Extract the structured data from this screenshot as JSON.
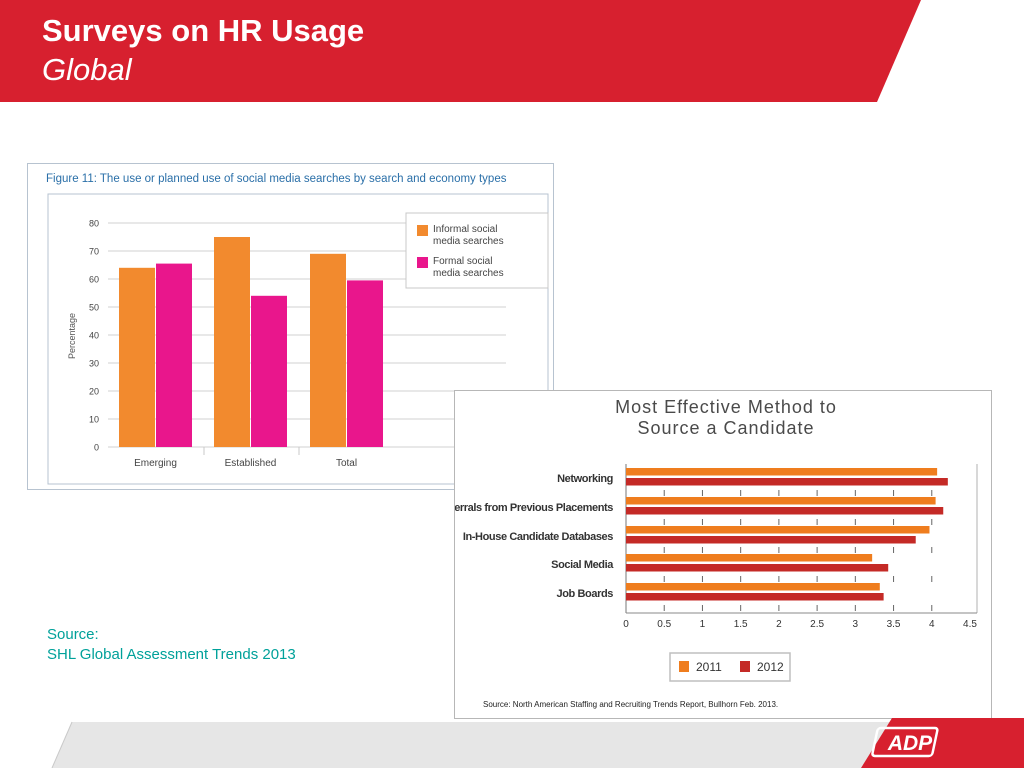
{
  "slide": {
    "title": "Surveys on HR Usage",
    "subtitle": "Global",
    "source_label": "Source:",
    "source_text": "SHL Global Assessment Trends 2013",
    "brand_logo": "ADP",
    "colors": {
      "brand_red": "#d7202f",
      "source_teal": "#00a19a"
    }
  },
  "chart_data": [
    {
      "type": "bar",
      "title": "Figure 11: The use or planned use of social media searches by search and economy types",
      "ylabel": "Percentage",
      "xlabel": "",
      "ylim": [
        0,
        80
      ],
      "yticks": [
        0,
        10,
        20,
        30,
        40,
        50,
        60,
        70,
        80
      ],
      "categories": [
        "Emerging",
        "Established",
        "Total"
      ],
      "series": [
        {
          "name": "Informal social media searches",
          "values": [
            64,
            75,
            69
          ],
          "color": "#f28a2e"
        },
        {
          "name": "Formal social media searches",
          "values": [
            65.5,
            54,
            59.5
          ],
          "color": "#e9168c"
        }
      ],
      "legend": "top-right",
      "grid": true
    },
    {
      "type": "bar",
      "orientation": "horizontal",
      "title": "Most Effective Method to Source a Candidate",
      "categories": [
        "Networking",
        "Referrals from Previous Placements",
        "In-House Candidate Databases",
        "Social Media",
        "Job Boards"
      ],
      "series": [
        {
          "name": "2011",
          "values": [
            4.07,
            4.05,
            3.97,
            3.22,
            3.32
          ],
          "color": "#ef7d1e"
        },
        {
          "name": "2012",
          "values": [
            4.21,
            4.15,
            3.79,
            3.43,
            3.37
          ],
          "color": "#c42a26"
        }
      ],
      "xlim": [
        0,
        4.5
      ],
      "xticks": [
        "0",
        "0.5",
        "1",
        "1.5",
        "2",
        "2.5",
        "3",
        "3.5",
        "4",
        "4.5"
      ],
      "legend": "bottom-center",
      "source": "Source: North American Staffing and Recruiting Trends Report, Bullhorn Feb. 2013."
    }
  ]
}
